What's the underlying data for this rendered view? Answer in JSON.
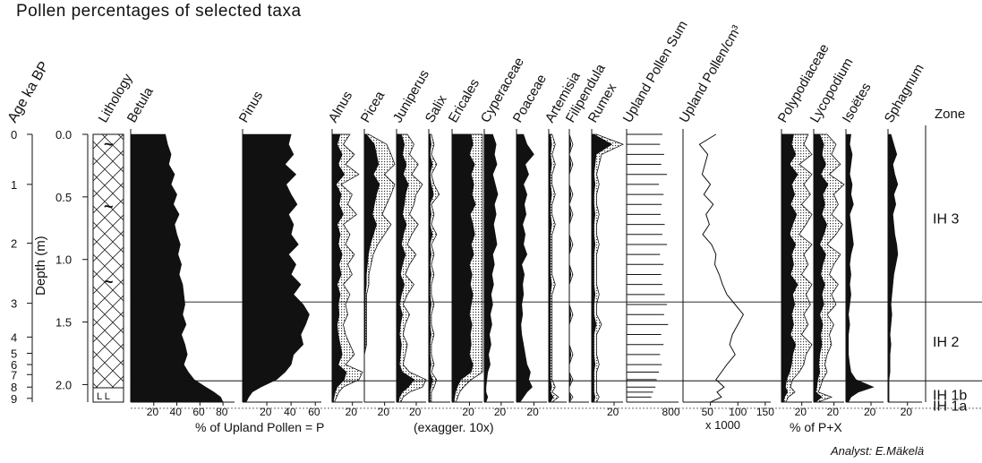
{
  "title": "Pollen percentages of selected taxa",
  "analyst": "Analyst: E.Mäkelä",
  "chart_data": {
    "type": "area",
    "title": "Pollen percentages of selected taxa",
    "age_axis": {
      "label": "Age ka BP",
      "ticks": [
        "0",
        "1",
        "2",
        "3",
        "4",
        "5",
        "6",
        "7",
        "8",
        "9"
      ],
      "tick_depths": [
        0.0,
        0.4,
        0.87,
        1.35,
        1.62,
        1.75,
        1.84,
        1.92,
        2.02,
        2.11
      ]
    },
    "depth_axis": {
      "label": "Depth (m)",
      "ticks": [
        "0.0",
        "0.5",
        "1.0",
        "1.5",
        "2.0"
      ],
      "ylim": [
        0,
        2.14
      ]
    },
    "lithology": {
      "label": "Lithology",
      "symbols": [
        "~",
        "~",
        "~"
      ],
      "base_label": "L L"
    },
    "depths": [
      0.0,
      0.08,
      0.16,
      0.24,
      0.32,
      0.4,
      0.48,
      0.56,
      0.64,
      0.72,
      0.8,
      0.88,
      0.96,
      1.04,
      1.12,
      1.2,
      1.28,
      1.36,
      1.44,
      1.52,
      1.6,
      1.68,
      1.76,
      1.84,
      1.9,
      1.96,
      2.02,
      2.06,
      2.1,
      2.14
    ],
    "taxa": [
      {
        "name": "Betula",
        "scale_max": 90,
        "ticks": [
          "20",
          "40",
          "60",
          "80"
        ],
        "exag": false,
        "values": [
          30,
          32,
          35,
          33,
          38,
          35,
          40,
          37,
          42,
          38,
          40,
          43,
          41,
          44,
          42,
          45,
          46,
          47,
          45,
          48,
          44,
          47,
          49,
          46,
          50,
          55,
          65,
          72,
          78,
          80
        ]
      },
      {
        "name": "Pinus",
        "scale_max": 65,
        "ticks": [
          "20",
          "40",
          "60"
        ],
        "exag": false,
        "values": [
          40,
          38,
          42,
          35,
          44,
          36,
          40,
          45,
          38,
          42,
          40,
          46,
          38,
          44,
          40,
          48,
          42,
          50,
          55,
          52,
          48,
          50,
          42,
          40,
          35,
          28,
          15,
          8,
          5,
          3
        ]
      },
      {
        "name": "Alnus",
        "scale_max": 30,
        "ticks": [
          "20"
        ],
        "exag": true,
        "values": [
          8,
          5,
          10,
          6,
          12,
          4,
          9,
          7,
          11,
          5,
          8,
          6,
          10,
          7,
          9,
          5,
          8,
          6,
          7,
          5,
          6,
          8,
          10,
          6,
          14,
          12,
          5,
          3,
          2,
          1
        ]
      },
      {
        "name": "Picea",
        "scale_max": 30,
        "ticks": [
          "20"
        ],
        "exag": true,
        "values": [
          2,
          10,
          12,
          14,
          9,
          15,
          12,
          10,
          8,
          12,
          9,
          6,
          4,
          3,
          2,
          2,
          1,
          1,
          1,
          1,
          1,
          1,
          0,
          0,
          0,
          0,
          0,
          0,
          0,
          0
        ]
      },
      {
        "name": "Juniperus",
        "scale_max": 30,
        "ticks": [
          "20"
        ],
        "exag": true,
        "values": [
          5,
          8,
          6,
          10,
          7,
          12,
          9,
          8,
          6,
          10,
          7,
          5,
          9,
          6,
          4,
          8,
          5,
          3,
          6,
          4,
          3,
          5,
          4,
          3,
          6,
          18,
          12,
          6,
          3,
          2
        ]
      },
      {
        "name": "Salix",
        "scale_max": 18,
        "ticks": [],
        "exag": true,
        "values": [
          1,
          2,
          1,
          3,
          1,
          2,
          4,
          1,
          2,
          1,
          3,
          1,
          2,
          1,
          2,
          1,
          1,
          2,
          1,
          1,
          2,
          1,
          1,
          2,
          1,
          3,
          2,
          1,
          1,
          1
        ]
      },
      {
        "name": "Ericales",
        "scale_max": 35,
        "ticks": [
          "20"
        ],
        "exag": true,
        "values": [
          22,
          24,
          20,
          26,
          22,
          25,
          23,
          27,
          21,
          24,
          26,
          22,
          25,
          20,
          23,
          21,
          24,
          22,
          20,
          23,
          21,
          22,
          20,
          24,
          22,
          10,
          6,
          4,
          3,
          2
        ]
      },
      {
        "name": "Cyperaceae",
        "scale_max": 35,
        "ticks": [
          "20"
        ],
        "exag": false,
        "values": [
          10,
          14,
          12,
          15,
          10,
          13,
          16,
          12,
          14,
          11,
          13,
          15,
          10,
          12,
          9,
          11,
          8,
          10,
          7,
          9,
          6,
          8,
          5,
          7,
          4,
          3,
          2,
          2,
          4,
          2
        ]
      },
      {
        "name": "Poaceae",
        "scale_max": 35,
        "ticks": [
          "20"
        ],
        "exag": false,
        "values": [
          8,
          12,
          20,
          10,
          14,
          8,
          12,
          9,
          11,
          7,
          10,
          8,
          12,
          6,
          9,
          7,
          8,
          6,
          7,
          5,
          6,
          8,
          10,
          12,
          16,
          14,
          18,
          12,
          8,
          4
        ]
      },
      {
        "name": "Artemisia",
        "scale_max": 12,
        "ticks": [],
        "exag": true,
        "values": [
          1,
          2,
          1,
          2,
          1,
          1,
          2,
          1,
          1,
          2,
          1,
          1,
          1,
          1,
          1,
          2,
          1,
          1,
          1,
          1,
          1,
          1,
          1,
          1,
          1,
          1,
          2,
          1,
          3,
          1
        ]
      },
      {
        "name": "Filipendula",
        "scale_max": 12,
        "ticks": [],
        "exag": true,
        "values": [
          0,
          1,
          0,
          1,
          0,
          0,
          1,
          0,
          1,
          0,
          0,
          1,
          0,
          0,
          1,
          0,
          0,
          0,
          1,
          0,
          0,
          0,
          1,
          0,
          0,
          1,
          0,
          0,
          1,
          0
        ]
      },
      {
        "name": "Rumex",
        "scale_max": 28,
        "ticks": [
          "20"
        ],
        "exag": true,
        "values": [
          2,
          18,
          4,
          3,
          2,
          3,
          2,
          2,
          3,
          2,
          2,
          3,
          2,
          2,
          2,
          2,
          3,
          2,
          2,
          4,
          2,
          2,
          2,
          3,
          2,
          2,
          2,
          2,
          3,
          2
        ]
      },
      {
        "name": "Polypodiaceae",
        "scale_max": 30,
        "ticks": [
          "20"
        ],
        "exag": true,
        "values": [
          12,
          10,
          14,
          8,
          16,
          10,
          13,
          9,
          15,
          11,
          8,
          14,
          10,
          12,
          9,
          16,
          11,
          13,
          10,
          12,
          9,
          14,
          11,
          10,
          8,
          5,
          4,
          6,
          3,
          2
        ]
      },
      {
        "name": "Lycopodium",
        "scale_max": 30,
        "ticks": [
          "20"
        ],
        "exag": true,
        "values": [
          6,
          10,
          8,
          12,
          7,
          14,
          9,
          11,
          8,
          13,
          10,
          6,
          12,
          9,
          7,
          11,
          8,
          10,
          6,
          9,
          7,
          8,
          6,
          5,
          6,
          4,
          3,
          2,
          8,
          2
        ]
      },
      {
        "name": "Isoëtes",
        "scale_max": 30,
        "ticks": [
          "20"
        ],
        "exag": false,
        "values": [
          4,
          3,
          5,
          4,
          3,
          5,
          4,
          6,
          3,
          4,
          5,
          6,
          4,
          3,
          4,
          3,
          4,
          3,
          2,
          3,
          2,
          2,
          2,
          3,
          4,
          8,
          22,
          10,
          4,
          2
        ]
      },
      {
        "name": "Sphagnum",
        "scale_max": 35,
        "ticks": [
          "20"
        ],
        "exag": false,
        "values": [
          3,
          6,
          9,
          5,
          7,
          10,
          6,
          8,
          5,
          6,
          7,
          9,
          10,
          8,
          6,
          5,
          4,
          3,
          4,
          3,
          2,
          3,
          2,
          2,
          2,
          1,
          1,
          1,
          1,
          1
        ]
      }
    ],
    "upland_pollen_sum": {
      "name": "Upland Pollen Sum",
      "scale_max": 900,
      "ticks": [
        "800"
      ],
      "values": [
        620,
        580,
        650,
        600,
        700,
        560,
        640,
        610,
        590,
        660,
        620,
        700,
        580,
        640,
        600,
        620,
        660,
        700,
        650,
        720,
        600,
        640,
        580,
        610,
        560,
        520,
        500,
        460,
        430,
        400
      ]
    },
    "upland_pollen_conc": {
      "name": "Upland Pollen/cm³",
      "scale_max": 160,
      "ticks": [
        "50",
        "100",
        "150"
      ],
      "unit": "x 1000",
      "values": [
        60,
        30,
        45,
        40,
        35,
        50,
        38,
        55,
        42,
        48,
        36,
        52,
        60,
        58,
        66,
        72,
        80,
        95,
        110,
        100,
        90,
        85,
        95,
        80,
        70,
        60,
        75,
        62,
        70,
        50
      ]
    },
    "axis_labels": {
      "percent_upland": "% of Upland Pollen = P",
      "exaggeration": "(exagger. 10x)",
      "percent_px": "% of P+X"
    },
    "zones": {
      "label": "Zone",
      "names": [
        "IH 3",
        "IH 2",
        "IH 1b",
        "IH 1a"
      ],
      "boundaries": [
        1.34,
        1.97,
        2.19
      ]
    }
  }
}
